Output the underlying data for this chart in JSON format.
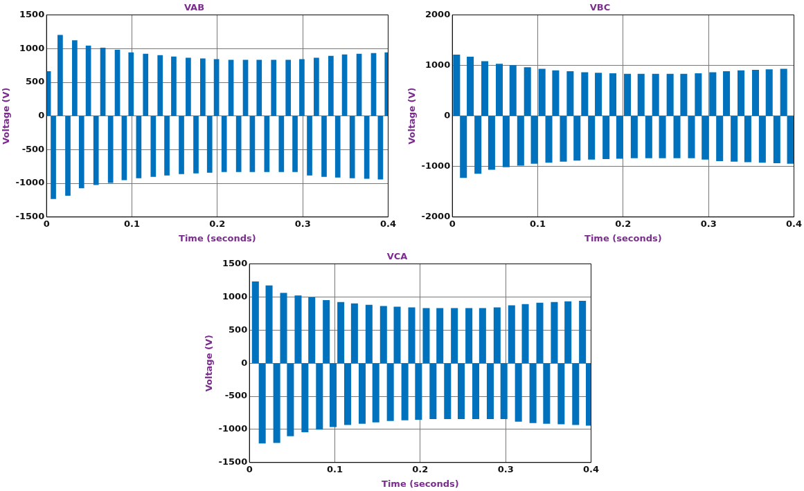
{
  "chart_data": [
    {
      "type": "bar",
      "title": "VAB",
      "xlabel": "Time (seconds)",
      "ylabel": "Voltage (V)",
      "xlim": [
        0,
        0.4
      ],
      "xticks": [
        0,
        0.1,
        0.2,
        0.3,
        0.4
      ],
      "ylim": [
        -1500,
        1500
      ],
      "yticks": [
        -1500,
        -1000,
        -500,
        0,
        500,
        1000,
        1500
      ],
      "grid": true,
      "series": [
        {
          "color": "#0072bd",
          "x": [
            0.002,
            0.016,
            0.033,
            0.049,
            0.066,
            0.083,
            0.099,
            0.116,
            0.133,
            0.149,
            0.166,
            0.183,
            0.199,
            0.216,
            0.233,
            0.249,
            0.266,
            0.283,
            0.299,
            0.316,
            0.333,
            0.349,
            0.366,
            0.383,
            0.399
          ],
          "values": [
            660,
            1200,
            1120,
            1040,
            1010,
            980,
            940,
            920,
            900,
            880,
            860,
            850,
            840,
            830,
            830,
            830,
            830,
            830,
            840,
            860,
            890,
            910,
            920,
            930,
            940
          ]
        },
        {
          "color": "#0072bd",
          "x": [
            0.008,
            0.025,
            0.041,
            0.058,
            0.075,
            0.091,
            0.108,
            0.125,
            0.141,
            0.158,
            0.175,
            0.191,
            0.208,
            0.225,
            0.241,
            0.258,
            0.275,
            0.291,
            0.308,
            0.325,
            0.341,
            0.358,
            0.375,
            0.391
          ],
          "values": [
            -1230,
            -1180,
            -1070,
            -1020,
            -990,
            -950,
            -920,
            -900,
            -880,
            -860,
            -850,
            -840,
            -830,
            -830,
            -830,
            -830,
            -830,
            -830,
            -880,
            -900,
            -910,
            -920,
            -930,
            -940
          ]
        }
      ]
    },
    {
      "type": "bar",
      "title": "VBC",
      "xlabel": "Time (seconds)",
      "ylabel": "Voltage (V)",
      "xlim": [
        0,
        0.4
      ],
      "xticks": [
        0,
        0.1,
        0.2,
        0.3,
        0.4
      ],
      "ylim": [
        -2000,
        2000
      ],
      "yticks": [
        -2000,
        -1000,
        0,
        1000,
        2000
      ],
      "grid": true,
      "series": [
        {
          "color": "#0072bd",
          "x": [
            0.005,
            0.021,
            0.038,
            0.055,
            0.071,
            0.088,
            0.105,
            0.121,
            0.138,
            0.155,
            0.171,
            0.188,
            0.205,
            0.221,
            0.238,
            0.255,
            0.271,
            0.288,
            0.305,
            0.321,
            0.338,
            0.355,
            0.371,
            0.388
          ],
          "values": [
            1210,
            1170,
            1080,
            1030,
            1000,
            960,
            930,
            900,
            880,
            860,
            850,
            840,
            830,
            830,
            830,
            830,
            830,
            840,
            860,
            880,
            900,
            910,
            920,
            930
          ]
        },
        {
          "color": "#0072bd",
          "x": [
            0.013,
            0.03,
            0.046,
            0.063,
            0.08,
            0.096,
            0.113,
            0.13,
            0.146,
            0.163,
            0.18,
            0.196,
            0.213,
            0.23,
            0.246,
            0.263,
            0.28,
            0.296,
            0.313,
            0.33,
            0.346,
            0.363,
            0.38,
            0.396
          ],
          "values": [
            -1220,
            -1140,
            -1060,
            -1010,
            -980,
            -940,
            -920,
            -900,
            -880,
            -860,
            -850,
            -840,
            -830,
            -830,
            -830,
            -830,
            -830,
            -860,
            -890,
            -900,
            -910,
            -920,
            -930,
            -940
          ]
        }
      ]
    },
    {
      "type": "bar",
      "title": "VCA",
      "xlabel": "Time (seconds)",
      "ylabel": "Voltage (V)",
      "xlim": [
        0,
        0.4
      ],
      "xticks": [
        0,
        0.1,
        0.2,
        0.3,
        0.4
      ],
      "ylim": [
        -1500,
        1500
      ],
      "yticks": [
        -1500,
        -1000,
        -500,
        0,
        500,
        1000,
        1500
      ],
      "grid": true,
      "series": [
        {
          "color": "#0072bd",
          "x": [
            0.007,
            0.023,
            0.04,
            0.057,
            0.073,
            0.09,
            0.107,
            0.123,
            0.14,
            0.157,
            0.173,
            0.19,
            0.207,
            0.223,
            0.24,
            0.257,
            0.273,
            0.29,
            0.307,
            0.323,
            0.34,
            0.357,
            0.373,
            0.39
          ],
          "values": [
            1230,
            1170,
            1060,
            1020,
            990,
            950,
            920,
            900,
            880,
            860,
            850,
            840,
            830,
            830,
            830,
            830,
            830,
            840,
            870,
            890,
            910,
            920,
            930,
            940
          ]
        },
        {
          "color": "#0072bd",
          "x": [
            0.015,
            0.032,
            0.048,
            0.065,
            0.082,
            0.098,
            0.115,
            0.132,
            0.148,
            0.165,
            0.182,
            0.198,
            0.215,
            0.232,
            0.248,
            0.265,
            0.282,
            0.298,
            0.315,
            0.332,
            0.348,
            0.365,
            0.382,
            0.398
          ],
          "values": [
            -1210,
            -1200,
            -1100,
            -1040,
            -1000,
            -960,
            -930,
            -910,
            -890,
            -870,
            -860,
            -850,
            -840,
            -840,
            -840,
            -840,
            -840,
            -840,
            -880,
            -900,
            -910,
            -920,
            -930,
            -940
          ]
        }
      ]
    }
  ]
}
